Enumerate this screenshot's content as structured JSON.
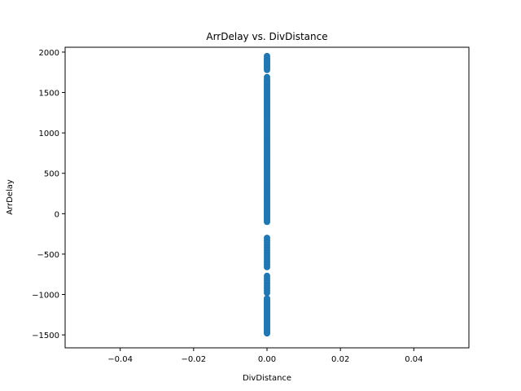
{
  "chart_data": {
    "type": "scatter",
    "title": "ArrDelay vs. DivDistance",
    "xlabel": "DivDistance",
    "ylabel": "ArrDelay",
    "xlim": [
      -0.055,
      0.055
    ],
    "ylim": [
      -1660,
      2060
    ],
    "xticks": [
      -0.04,
      -0.02,
      0.0,
      0.02,
      0.04
    ],
    "xtick_labels": [
      "−0.04",
      "−0.02",
      "0.00",
      "0.02",
      "0.04"
    ],
    "yticks": [
      -1500,
      -1000,
      -500,
      0,
      500,
      1000,
      1500,
      2000
    ],
    "ytick_labels": [
      "−1500",
      "−1000",
      "−500",
      "0",
      "500",
      "1000",
      "1500",
      "2000"
    ],
    "grid": false,
    "marker_color": "#1f77b4",
    "series": [
      {
        "x": [
          0,
          0,
          0,
          0,
          0,
          0,
          0,
          0,
          0,
          0,
          0,
          0,
          0,
          0,
          0,
          0,
          0,
          0,
          0,
          0,
          0,
          0,
          0,
          0,
          0,
          0,
          0,
          0,
          0,
          0,
          0,
          0,
          0,
          0,
          0,
          0,
          0,
          0,
          0,
          0,
          0,
          0,
          0,
          0,
          0,
          0,
          0,
          0,
          0,
          0,
          0,
          0,
          0,
          0,
          0,
          0,
          0,
          0,
          0,
          0,
          0,
          0,
          0,
          0,
          0,
          0,
          0,
          0,
          0,
          0,
          0,
          0,
          0,
          0,
          0,
          0,
          0,
          0,
          0,
          0,
          0,
          0,
          0,
          0,
          0,
          0,
          0,
          0,
          0,
          0,
          0,
          0
        ],
        "y": [
          1950,
          1920,
          1900,
          1880,
          1860,
          1840,
          1820,
          1800,
          1780,
          1690,
          1660,
          1640,
          1620,
          1600,
          1580,
          1560,
          1540,
          1520,
          1500,
          1480,
          1460,
          1440,
          1420,
          1400,
          1380,
          1360,
          1340,
          1320,
          1300,
          1280,
          1260,
          1240,
          1220,
          1200,
          1180,
          1160,
          1140,
          1120,
          1100,
          1080,
          1060,
          1040,
          1020,
          1000,
          980,
          960,
          940,
          920,
          900,
          880,
          860,
          840,
          820,
          800,
          780,
          760,
          740,
          720,
          700,
          680,
          660,
          640,
          620,
          600,
          580,
          560,
          540,
          520,
          500,
          480,
          460,
          440,
          420,
          400,
          380,
          360,
          340,
          320,
          300,
          280,
          260,
          240,
          220,
          200,
          180,
          160,
          140,
          120,
          100,
          80,
          60,
          40
        ]
      },
      {
        "x": [
          0,
          0,
          0,
          0,
          0,
          0,
          0,
          0,
          0,
          0,
          0,
          0,
          0,
          0,
          0,
          0,
          0,
          0,
          0,
          0,
          0,
          0,
          0,
          0,
          0,
          0,
          0,
          0,
          0,
          0,
          0,
          0,
          0,
          0,
          0,
          0,
          0,
          0,
          0,
          0,
          0,
          0,
          0,
          0,
          0,
          0,
          0,
          0,
          0,
          0,
          0,
          0,
          0,
          0,
          0,
          0,
          0,
          0,
          0,
          0
        ],
        "y": [
          20,
          0,
          -20,
          -40,
          -60,
          -80,
          -100,
          -300,
          -330,
          -360,
          -390,
          -420,
          -450,
          -480,
          -510,
          -540,
          -570,
          -600,
          -630,
          -660,
          -770,
          -800,
          -830,
          -860,
          -890,
          -920,
          -950,
          -980,
          -1050,
          -1080,
          -1110,
          -1140,
          -1170,
          -1200,
          -1230,
          -1260,
          -1290,
          -1320,
          -1350,
          -1380,
          -1410,
          -1440,
          -1470,
          -1480,
          -1460,
          -1430,
          -1400,
          -1370,
          -1340,
          -1310,
          -1280,
          -1250,
          -1220,
          -1190,
          -1160,
          -1130,
          -1100,
          -1070,
          -1440,
          -1470
        ]
      }
    ]
  }
}
